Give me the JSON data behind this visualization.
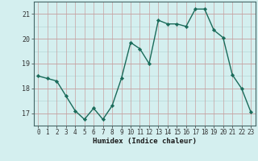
{
  "x": [
    0,
    1,
    2,
    3,
    4,
    5,
    6,
    7,
    8,
    9,
    10,
    11,
    12,
    13,
    14,
    15,
    16,
    17,
    18,
    19,
    20,
    21,
    22,
    23
  ],
  "y": [
    18.5,
    18.4,
    18.3,
    17.7,
    17.1,
    16.75,
    17.2,
    16.75,
    17.3,
    18.4,
    19.85,
    19.6,
    19.0,
    20.75,
    20.6,
    20.6,
    20.5,
    21.2,
    21.2,
    20.35,
    20.05,
    18.55,
    18.0,
    17.05
  ],
  "xlabel": "Humidex (Indice chaleur)",
  "line_color": "#1a6b5a",
  "marker_color": "#1a6b5a",
  "bg_color": "#d4efef",
  "red_grid_color": "#c8a0a0",
  "teal_grid_color": "#b8d8d8",
  "ylim": [
    16.5,
    21.5
  ],
  "xlim": [
    -0.5,
    23.5
  ],
  "yticks": [
    17,
    18,
    19,
    20,
    21
  ],
  "xticks": [
    0,
    1,
    2,
    3,
    4,
    5,
    6,
    7,
    8,
    9,
    10,
    11,
    12,
    13,
    14,
    15,
    16,
    17,
    18,
    19,
    20,
    21,
    22,
    23
  ],
  "xlabel_fontsize": 6.5,
  "tick_fontsize": 5.5
}
